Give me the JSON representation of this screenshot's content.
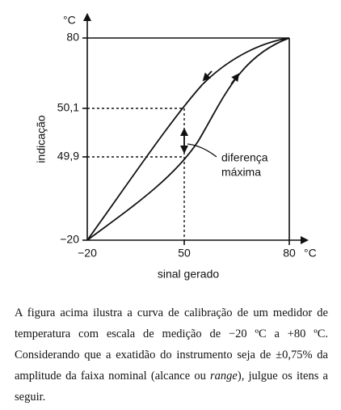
{
  "figure": {
    "y_unit": "°C",
    "y_label": "indicação",
    "y_ticks": [
      "80",
      "50,1",
      "49,9",
      "−20"
    ],
    "x_ticks": [
      "−20",
      "50",
      "80"
    ],
    "x_unit": "°C",
    "x_label": "sinal gerado",
    "annotation": [
      "diferença",
      "máxima"
    ]
  },
  "paragraph": {
    "before": "A figura acima ilustra a curva de calibração de um medidor de temperatura com escala de medição de −20 ºC a +80 ºC. Considerando que a exatidão do instrumento seja de ±0,75% da amplitude da faixa nominal (alcance ou ",
    "italic": "range",
    "after": "), julgue os itens a seguir."
  }
}
